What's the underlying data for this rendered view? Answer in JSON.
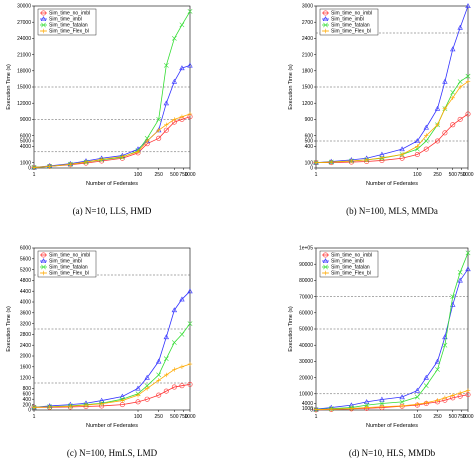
{
  "series_colors": [
    "#ff3333",
    "#3333ff",
    "#33dd33",
    "#ffaa00"
  ],
  "chart_data": [
    {
      "type": "line",
      "caption": "(a) N=10, LLS, HMD",
      "xlabel": "Number of Federates",
      "ylabel": "Execution Time (s)",
      "xscale": "log",
      "x": [
        1,
        2,
        5,
        10,
        20,
        50,
        100,
        150,
        250,
        350,
        500,
        700,
        1000
      ],
      "xticks": [
        1,
        100,
        250,
        500,
        750,
        1000
      ],
      "xticklabels": [
        "1",
        "100",
        "250",
        "500",
        "750",
        "1000"
      ],
      "yticks": [
        0,
        1000,
        4000,
        5000,
        6000,
        9000,
        12000,
        15000,
        18000,
        21000,
        24000,
        27000,
        30000
      ],
      "yticklabels": [
        "0",
        "1000",
        "4000",
        "5000",
        "6000",
        "9000",
        "12000",
        "15000",
        "18000",
        "21000",
        "24000",
        "27000",
        "30000"
      ],
      "ylim": [
        0,
        30000
      ],
      "hlines": [
        3000,
        9000,
        15000
      ],
      "legend": "top-left",
      "series": [
        {
          "name": "Sim_time_no_imbl",
          "values": [
            100,
            300,
            600,
            900,
            1300,
            1800,
            2800,
            4500,
            5500,
            7000,
            8500,
            9000,
            9500
          ]
        },
        {
          "name": "Sim_time_imbl",
          "values": [
            100,
            400,
            800,
            1300,
            1800,
            2300,
            3500,
            5000,
            7000,
            12000,
            16000,
            18500,
            19000
          ]
        },
        {
          "name": "Sim_time_fatalan",
          "values": [
            100,
            300,
            700,
            1100,
            1500,
            2000,
            3200,
            5500,
            9000,
            19000,
            24000,
            26500,
            29000
          ]
        },
        {
          "name": "Sim_time_Flex_bl",
          "values": [
            100,
            300,
            700,
            1100,
            1600,
            2100,
            3000,
            5000,
            7000,
            8000,
            9000,
            9500,
            10000
          ]
        }
      ]
    },
    {
      "type": "line",
      "caption": "(b) N=100, MLS, MMDa",
      "xlabel": "Number of Federates",
      "ylabel": "Execution Time (s)",
      "xscale": "log",
      "x": [
        1,
        2,
        5,
        10,
        20,
        50,
        100,
        150,
        250,
        350,
        500,
        700,
        1000
      ],
      "xticks": [
        1,
        100,
        250,
        500,
        750,
        1000
      ],
      "xticklabels": [
        "1",
        "100",
        "250",
        "500",
        "750",
        "1000"
      ],
      "yticks": [
        0,
        100,
        400,
        500,
        600,
        900,
        1200,
        1500,
        1800,
        2100,
        2400,
        2700,
        3000
      ],
      "yticklabels": [
        "0",
        "100",
        "400",
        "500",
        "600",
        "900",
        "1200",
        "1500",
        "1800",
        "2100",
        "2400",
        "2700",
        "3000"
      ],
      "ylim": [
        0,
        3000
      ],
      "hlines": [
        500,
        1500,
        2500
      ],
      "legend": "top-left",
      "series": [
        {
          "name": "Sim_time_no_imbl",
          "values": [
            100,
            100,
            110,
            120,
            140,
            180,
            250,
            350,
            500,
            650,
            800,
            900,
            1000
          ]
        },
        {
          "name": "Sim_time_imbl",
          "values": [
            100,
            120,
            150,
            180,
            250,
            350,
            500,
            750,
            1100,
            1600,
            2200,
            2600,
            3000
          ]
        },
        {
          "name": "Sim_time_fatalan",
          "values": [
            100,
            110,
            130,
            150,
            180,
            250,
            350,
            500,
            800,
            1100,
            1400,
            1600,
            1700
          ]
        },
        {
          "name": "Sim_time_Flex_bl",
          "values": [
            100,
            110,
            130,
            150,
            190,
            250,
            400,
            600,
            800,
            1100,
            1300,
            1500,
            1600
          ]
        }
      ]
    },
    {
      "type": "line",
      "caption": "(c) N=100, HmLS, LMD",
      "xlabel": "Number of Federates",
      "ylabel": "Execution Time (s)",
      "xscale": "log",
      "x": [
        1,
        2,
        5,
        10,
        20,
        50,
        100,
        150,
        250,
        350,
        500,
        700,
        1000
      ],
      "xticks": [
        1,
        100,
        250,
        500,
        750,
        1000
      ],
      "xticklabels": [
        "1",
        "100",
        "250",
        "500",
        "750",
        "1000"
      ],
      "yticks": [
        0,
        200,
        400,
        600,
        800,
        1200,
        1600,
        2000,
        2400,
        2800,
        3200,
        3600,
        4000,
        4400,
        4800,
        5200,
        5600,
        6000
      ],
      "yticklabels": [
        "0",
        "200",
        "400",
        "600",
        "800",
        "1200",
        "1600",
        "2000",
        "2400",
        "2800",
        "3200",
        "3600",
        "4000",
        "4400",
        "4800",
        "5200",
        "5600",
        "6000"
      ],
      "ylim": [
        0,
        6000
      ],
      "hlines": [
        1000,
        3000,
        5000
      ],
      "legend": "top-left",
      "series": [
        {
          "name": "Sim_time_no_imbl",
          "values": [
            100,
            100,
            110,
            130,
            150,
            200,
            300,
            400,
            550,
            700,
            850,
            900,
            950
          ]
        },
        {
          "name": "Sim_time_imbl",
          "values": [
            100,
            150,
            200,
            250,
            350,
            500,
            800,
            1200,
            1800,
            2700,
            3700,
            4100,
            4400
          ]
        },
        {
          "name": "Sim_time_fatalan",
          "values": [
            100,
            120,
            150,
            200,
            250,
            400,
            600,
            900,
            1300,
            1900,
            2500,
            2800,
            3200
          ]
        },
        {
          "name": "Sim_time_Flex_bl",
          "values": [
            100,
            110,
            140,
            180,
            230,
            350,
            550,
            800,
            1100,
            1300,
            1500,
            1600,
            1700
          ]
        }
      ]
    },
    {
      "type": "line",
      "caption": "(d) N=10, HLS, MMDb",
      "xlabel": "Number of Federates",
      "ylabel": "Execution Time (s)",
      "xscale": "log",
      "x": [
        1,
        2,
        5,
        10,
        20,
        50,
        100,
        150,
        250,
        350,
        500,
        700,
        1000
      ],
      "xticks": [
        1,
        100,
        250,
        500,
        750,
        1000
      ],
      "xticklabels": [
        "1",
        "100",
        "250",
        "500",
        "750",
        "1000"
      ],
      "yticks": [
        0,
        1000,
        4000,
        10000,
        20000,
        30000,
        40000,
        50000,
        60000,
        70000,
        80000,
        90000,
        100000
      ],
      "yticklabels": [
        "0",
        "1000",
        "4000",
        "10000",
        "20000",
        "30000",
        "40000",
        "50000",
        "60000",
        "70000",
        "80000",
        "90000",
        "1e+05"
      ],
      "ylim": [
        0,
        100000
      ],
      "hlines": [
        10000,
        50000,
        70000
      ],
      "legend": "top-left",
      "series": [
        {
          "name": "Sim_time_no_imbl",
          "values": [
            100,
            300,
            700,
            1000,
            1500,
            2300,
            3000,
            4000,
            5000,
            6000,
            7500,
            8500,
            9500
          ]
        },
        {
          "name": "Sim_time_imbl",
          "values": [
            500,
            1500,
            3000,
            5000,
            6500,
            8000,
            12000,
            20000,
            30000,
            45000,
            65000,
            80000,
            87000
          ]
        },
        {
          "name": "Sim_time_fatalan",
          "values": [
            300,
            800,
            1500,
            3000,
            4000,
            5000,
            8000,
            15000,
            25000,
            40000,
            70000,
            85000,
            97000
          ]
        },
        {
          "name": "Sim_time_Flex_bl",
          "values": [
            200,
            500,
            900,
            1500,
            2000,
            2500,
            3500,
            4500,
            6000,
            7500,
            9000,
            10500,
            12000
          ]
        }
      ]
    }
  ]
}
